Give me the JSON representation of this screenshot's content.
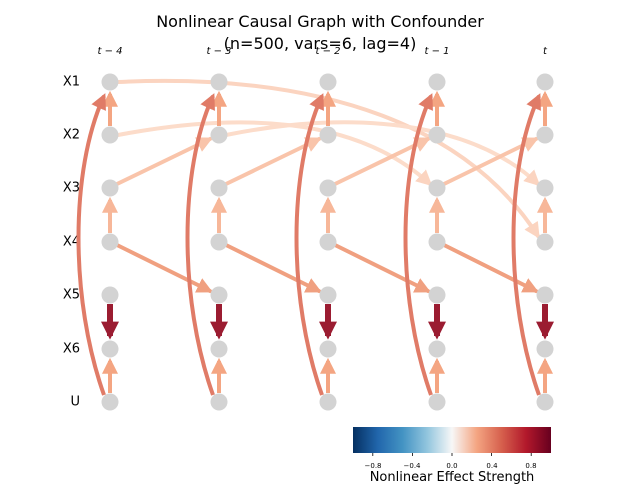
{
  "title_line1": "Nonlinear Causal Graph with Confounder",
  "title_line2": "(n=500, vars=6, lag=4)",
  "time_labels": [
    "t − 4",
    "t − 3",
    "t − 2",
    "t − 1",
    "t"
  ],
  "variables": [
    "X1",
    "X2",
    "X3",
    "X4",
    "X5",
    "X6",
    "U"
  ],
  "colorbar": {
    "label": "Nonlinear Effect Strength",
    "ticks": [
      "−0.8",
      "−0.4",
      "0.0",
      "0.4",
      "0.8"
    ],
    "tick_values": [
      -0.8,
      -0.4,
      0.0,
      0.4,
      0.8
    ],
    "range": [
      -1,
      1
    ],
    "colormap": "RdBu_r"
  },
  "node_color": "#d3d3d3",
  "contemporaneous_edges": [
    {
      "from": "X2",
      "to": "X1",
      "strength": 0.45,
      "color": "#f4a582"
    },
    {
      "from": "X4",
      "to": "X3",
      "strength": 0.4,
      "color": "#f7b799"
    },
    {
      "from": "X5",
      "to": "X6",
      "strength": 0.95,
      "color": "#9b1c31"
    },
    {
      "from": "U",
      "to": "X6",
      "strength": 0.45,
      "color": "#f4a582"
    },
    {
      "from": "U",
      "to": "X1",
      "strength": 0.65,
      "color": "#e07b67"
    }
  ],
  "lagged_edges": [
    {
      "from": "X3",
      "to": "X2",
      "lag": 1,
      "strength": 0.35,
      "color": "#f9c4aa"
    },
    {
      "from": "X4",
      "to": "X5",
      "lag": 1,
      "strength": 0.5,
      "color": "#f0a080"
    },
    {
      "from": "X1",
      "to": "X4",
      "lag": 4,
      "strength": 0.25,
      "color": "#fbd4c0"
    },
    {
      "from": "X2",
      "to": "X3",
      "lag": 3,
      "strength": 0.2,
      "color": "#fcdcca"
    }
  ]
}
